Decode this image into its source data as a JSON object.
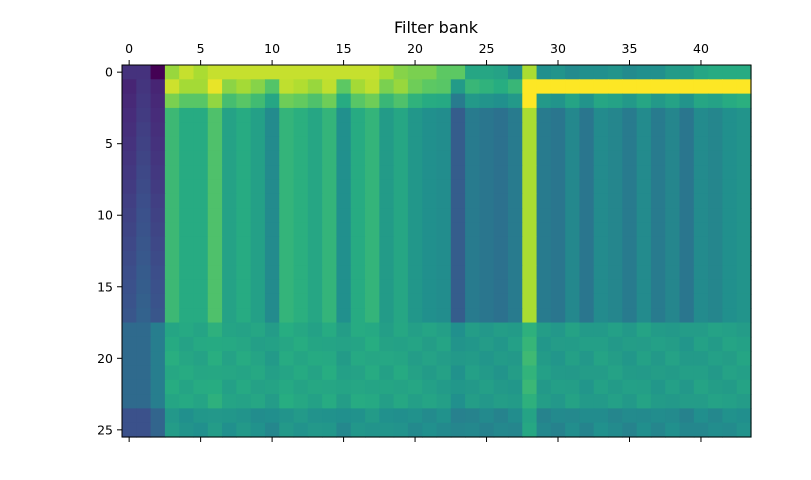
{
  "chart_data": {
    "type": "heatmap",
    "title": "Filter bank",
    "colormap": "viridis",
    "grid": false,
    "x_axis_position": "top",
    "xlim": [
      -0.5,
      43.5
    ],
    "ylim": [
      25.5,
      -0.5
    ],
    "x_ticks": [
      0,
      5,
      10,
      15,
      20,
      25,
      30,
      35,
      40
    ],
    "y_ticks": [
      0,
      5,
      10,
      15,
      20,
      25
    ],
    "n_cols": 44,
    "n_rows": 26,
    "value_range": [
      0,
      1
    ],
    "col_profile": [
      0.05,
      0.15,
      0.08,
      0.68,
      0.62,
      0.62,
      0.72,
      0.58,
      0.62,
      0.57,
      0.48,
      0.66,
      0.64,
      0.6,
      0.66,
      0.5,
      0.62,
      0.66,
      0.55,
      0.6,
      0.53,
      0.5,
      0.49,
      0.3,
      0.42,
      0.4,
      0.38,
      0.42,
      0.88,
      0.42,
      0.4,
      0.47,
      0.4,
      0.48,
      0.46,
      0.42,
      0.48,
      0.42,
      0.46,
      0.4,
      0.48,
      0.46,
      0.5,
      0.52
    ],
    "row0_col_values": [
      0.15,
      0.15,
      0.0,
      0.85,
      0.92,
      0.88,
      0.92,
      0.92,
      0.92,
      0.92,
      0.92,
      0.92,
      0.92,
      0.92,
      0.92,
      0.92,
      0.92,
      0.92,
      0.88,
      0.82,
      0.8,
      0.8,
      0.75,
      0.75,
      0.6,
      0.6,
      0.58,
      0.5,
      0.88,
      0.5,
      0.52,
      0.48,
      0.5,
      0.5,
      0.52,
      0.48,
      0.5,
      0.5,
      0.55,
      0.55,
      0.6,
      0.62,
      0.62,
      0.62
    ],
    "row1_bright_band": {
      "row": 1,
      "col_start": 29,
      "col_end": 43,
      "value": 1.0
    },
    "lower_block_rows": [
      18,
      25
    ],
    "lower_block_level": 0.55
  }
}
